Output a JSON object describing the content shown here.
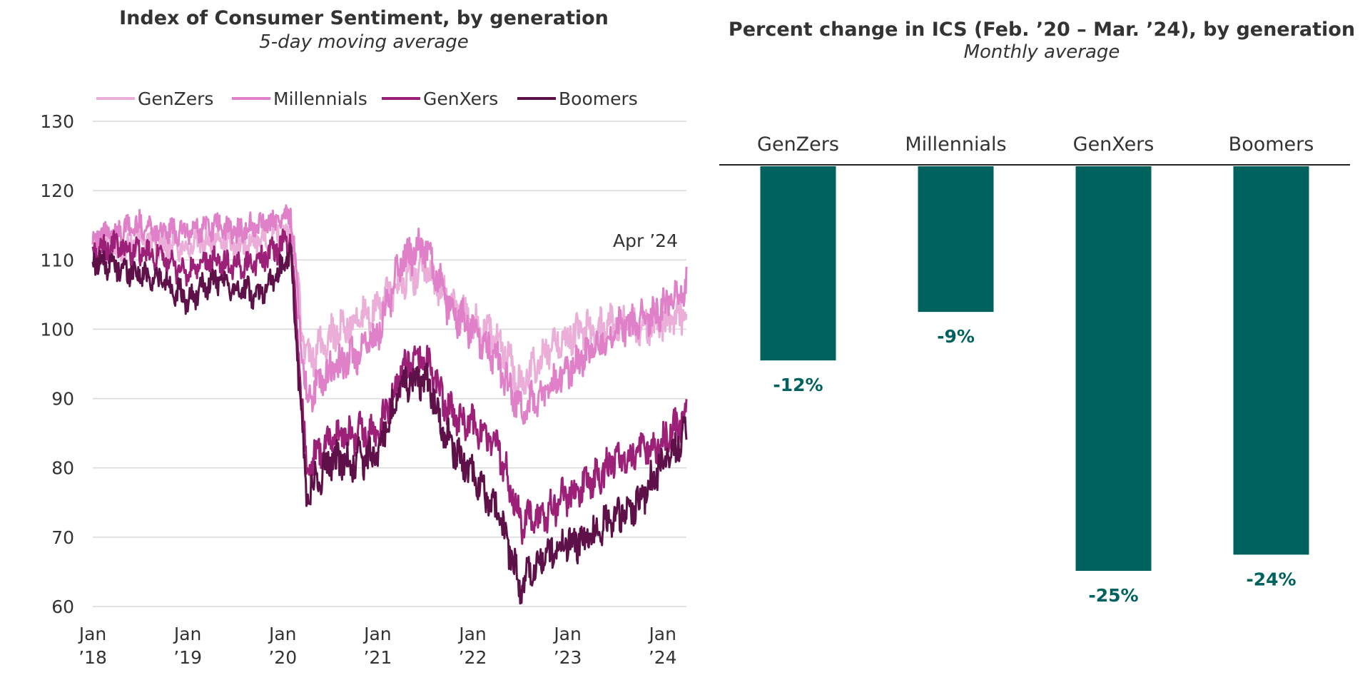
{
  "chart_data": [
    {
      "type": "line",
      "title": "Index of Consumer Sentiment, by generation",
      "subtitle": "5-day moving average",
      "xlabel": "",
      "ylabel": "",
      "ylim": [
        60,
        130
      ],
      "yticks": [
        "60",
        "70",
        "80",
        "90",
        "100",
        "110",
        "120",
        "130"
      ],
      "xlim": [
        "2018-01",
        "2024-04"
      ],
      "xticks": [
        {
          "line1": "Jan",
          "line2": "’18",
          "x": "2018-01"
        },
        {
          "line1": "Jan",
          "line2": "’19",
          "x": "2019-01"
        },
        {
          "line1": "Jan",
          "line2": "’20",
          "x": "2020-01"
        },
        {
          "line1": "Jan",
          "line2": "’21",
          "x": "2021-01"
        },
        {
          "line1": "Jan",
          "line2": "’22",
          "x": "2022-01"
        },
        {
          "line1": "Jan",
          "line2": "’23",
          "x": "2023-01"
        },
        {
          "line1": "Jan",
          "line2": "’24",
          "x": "2024-01"
        }
      ],
      "grid": true,
      "legend_position": "top",
      "annotation": "Apr ’24",
      "x": [
        "2018-01",
        "2018-04",
        "2018-07",
        "2018-10",
        "2019-01",
        "2019-04",
        "2019-07",
        "2019-10",
        "2020-01",
        "2020-02",
        "2020-04",
        "2020-07",
        "2020-10",
        "2021-01",
        "2021-04",
        "2021-07",
        "2021-10",
        "2022-01",
        "2022-04",
        "2022-07",
        "2022-10",
        "2023-01",
        "2023-04",
        "2023-07",
        "2023-10",
        "2024-01",
        "2024-04"
      ],
      "series": [
        {
          "name": "GenZers",
          "color": "#eaaed9",
          "values": [
            112,
            111,
            113,
            112,
            112,
            113,
            112,
            113,
            114,
            115,
            95,
            99,
            101,
            103,
            107,
            109,
            104,
            101,
            99,
            92,
            96,
            99,
            100,
            101,
            100,
            101,
            102
          ]
        },
        {
          "name": "Millennials",
          "color": "#e080c8",
          "values": [
            113,
            114,
            115,
            114,
            114,
            115,
            114,
            115,
            116,
            117,
            90,
            94,
            96,
            99,
            110,
            112,
            103,
            100,
            96,
            88,
            91,
            94,
            97,
            100,
            101,
            103,
            106
          ]
        },
        {
          "name": "GenXers",
          "color": "#9c2078",
          "values": [
            111,
            112,
            111,
            110,
            108,
            110,
            109,
            110,
            112,
            113,
            80,
            84,
            85,
            85,
            94,
            96,
            88,
            86,
            84,
            72,
            73,
            76,
            78,
            81,
            82,
            84,
            87
          ]
        },
        {
          "name": "Boomers",
          "color": "#5e1048",
          "values": [
            110,
            109,
            108,
            107,
            104,
            107,
            106,
            105,
            109,
            111,
            76,
            81,
            81,
            82,
            92,
            93,
            84,
            79,
            74,
            63,
            67,
            69,
            70,
            73,
            75,
            81,
            85
          ]
        }
      ]
    },
    {
      "type": "bar",
      "title": "Percent change in ICS (Feb. ’20 – Mar. ’24), by generation",
      "subtitle": "Monthly average",
      "categories": [
        "GenZers",
        "Millennials",
        "GenXers",
        "Boomers"
      ],
      "values": [
        -12,
        -9,
        -25,
        -24
      ],
      "value_labels": [
        "-12%",
        "-9%",
        "-25%",
        "-24%"
      ],
      "bar_color": "#00625f",
      "label_color": "#00625f",
      "ylim": [
        -25,
        0
      ]
    }
  ]
}
